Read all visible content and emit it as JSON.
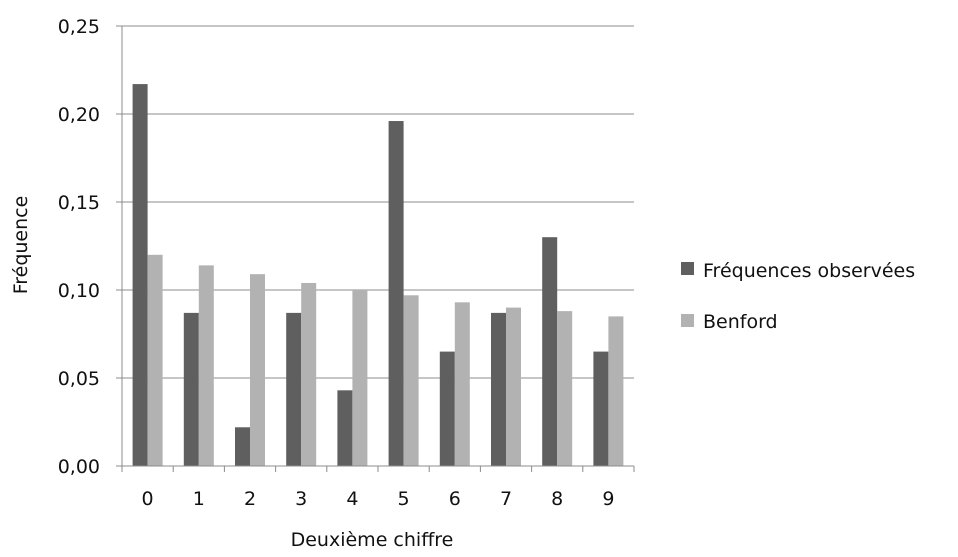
{
  "chart_data": {
    "type": "bar",
    "categories": [
      "0",
      "1",
      "2",
      "3",
      "4",
      "5",
      "6",
      "7",
      "8",
      "9"
    ],
    "series": [
      {
        "name": "Fréquences observées",
        "color": "#5f5f5f",
        "values": [
          0.217,
          0.087,
          0.022,
          0.087,
          0.043,
          0.196,
          0.065,
          0.087,
          0.13,
          0.065
        ]
      },
      {
        "name": "Benford",
        "color": "#b2b2b2",
        "values": [
          0.12,
          0.114,
          0.109,
          0.104,
          0.1,
          0.097,
          0.093,
          0.09,
          0.088,
          0.085
        ]
      }
    ],
    "title": "",
    "xlabel": "Deuxième chiffre",
    "ylabel": "Fréquence",
    "ylim": [
      0,
      0.25
    ],
    "yticks": [
      "0,00",
      "0,05",
      "0,10",
      "0,15",
      "0,20",
      "0,25"
    ],
    "ytick_values": [
      0,
      0.05,
      0.1,
      0.15,
      0.2,
      0.25
    ],
    "grid": true,
    "legend_position": "right"
  }
}
